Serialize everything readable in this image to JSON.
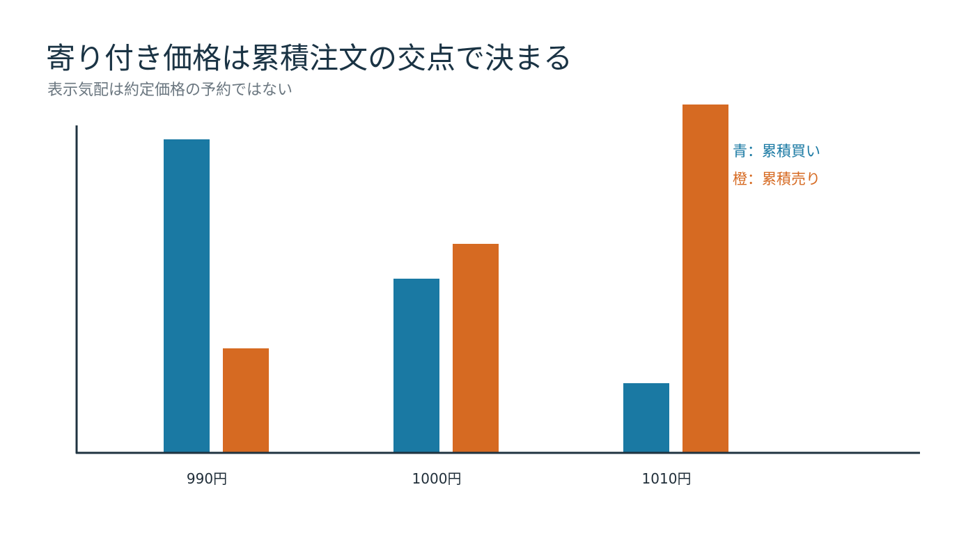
{
  "title": "寄り付き価格は累積注文の交点で決まる",
  "subtitle": "表示気配は約定価格の予約ではない",
  "chart_data": {
    "type": "bar",
    "title": "寄り付き価格は累積注文の交点で決まる",
    "subtitle": "表示気配は約定価格の予約ではない",
    "xlabel": "",
    "ylabel": "",
    "categories": [
      "990円",
      "1000円",
      "1010円"
    ],
    "series": [
      {
        "name": "累積買い",
        "color": "#1a79a3",
        "values": [
          9,
          5,
          2
        ]
      },
      {
        "name": "累積売り",
        "color": "#d66a22",
        "values": [
          3,
          6,
          10
        ]
      }
    ],
    "ylim": [
      0,
      10
    ],
    "grid": false,
    "legend": [
      {
        "label": "青：累積買い",
        "color": "#1a79a3"
      },
      {
        "label": "橙：累積売り",
        "color": "#d66a22"
      }
    ],
    "legend_position": "top-right"
  }
}
